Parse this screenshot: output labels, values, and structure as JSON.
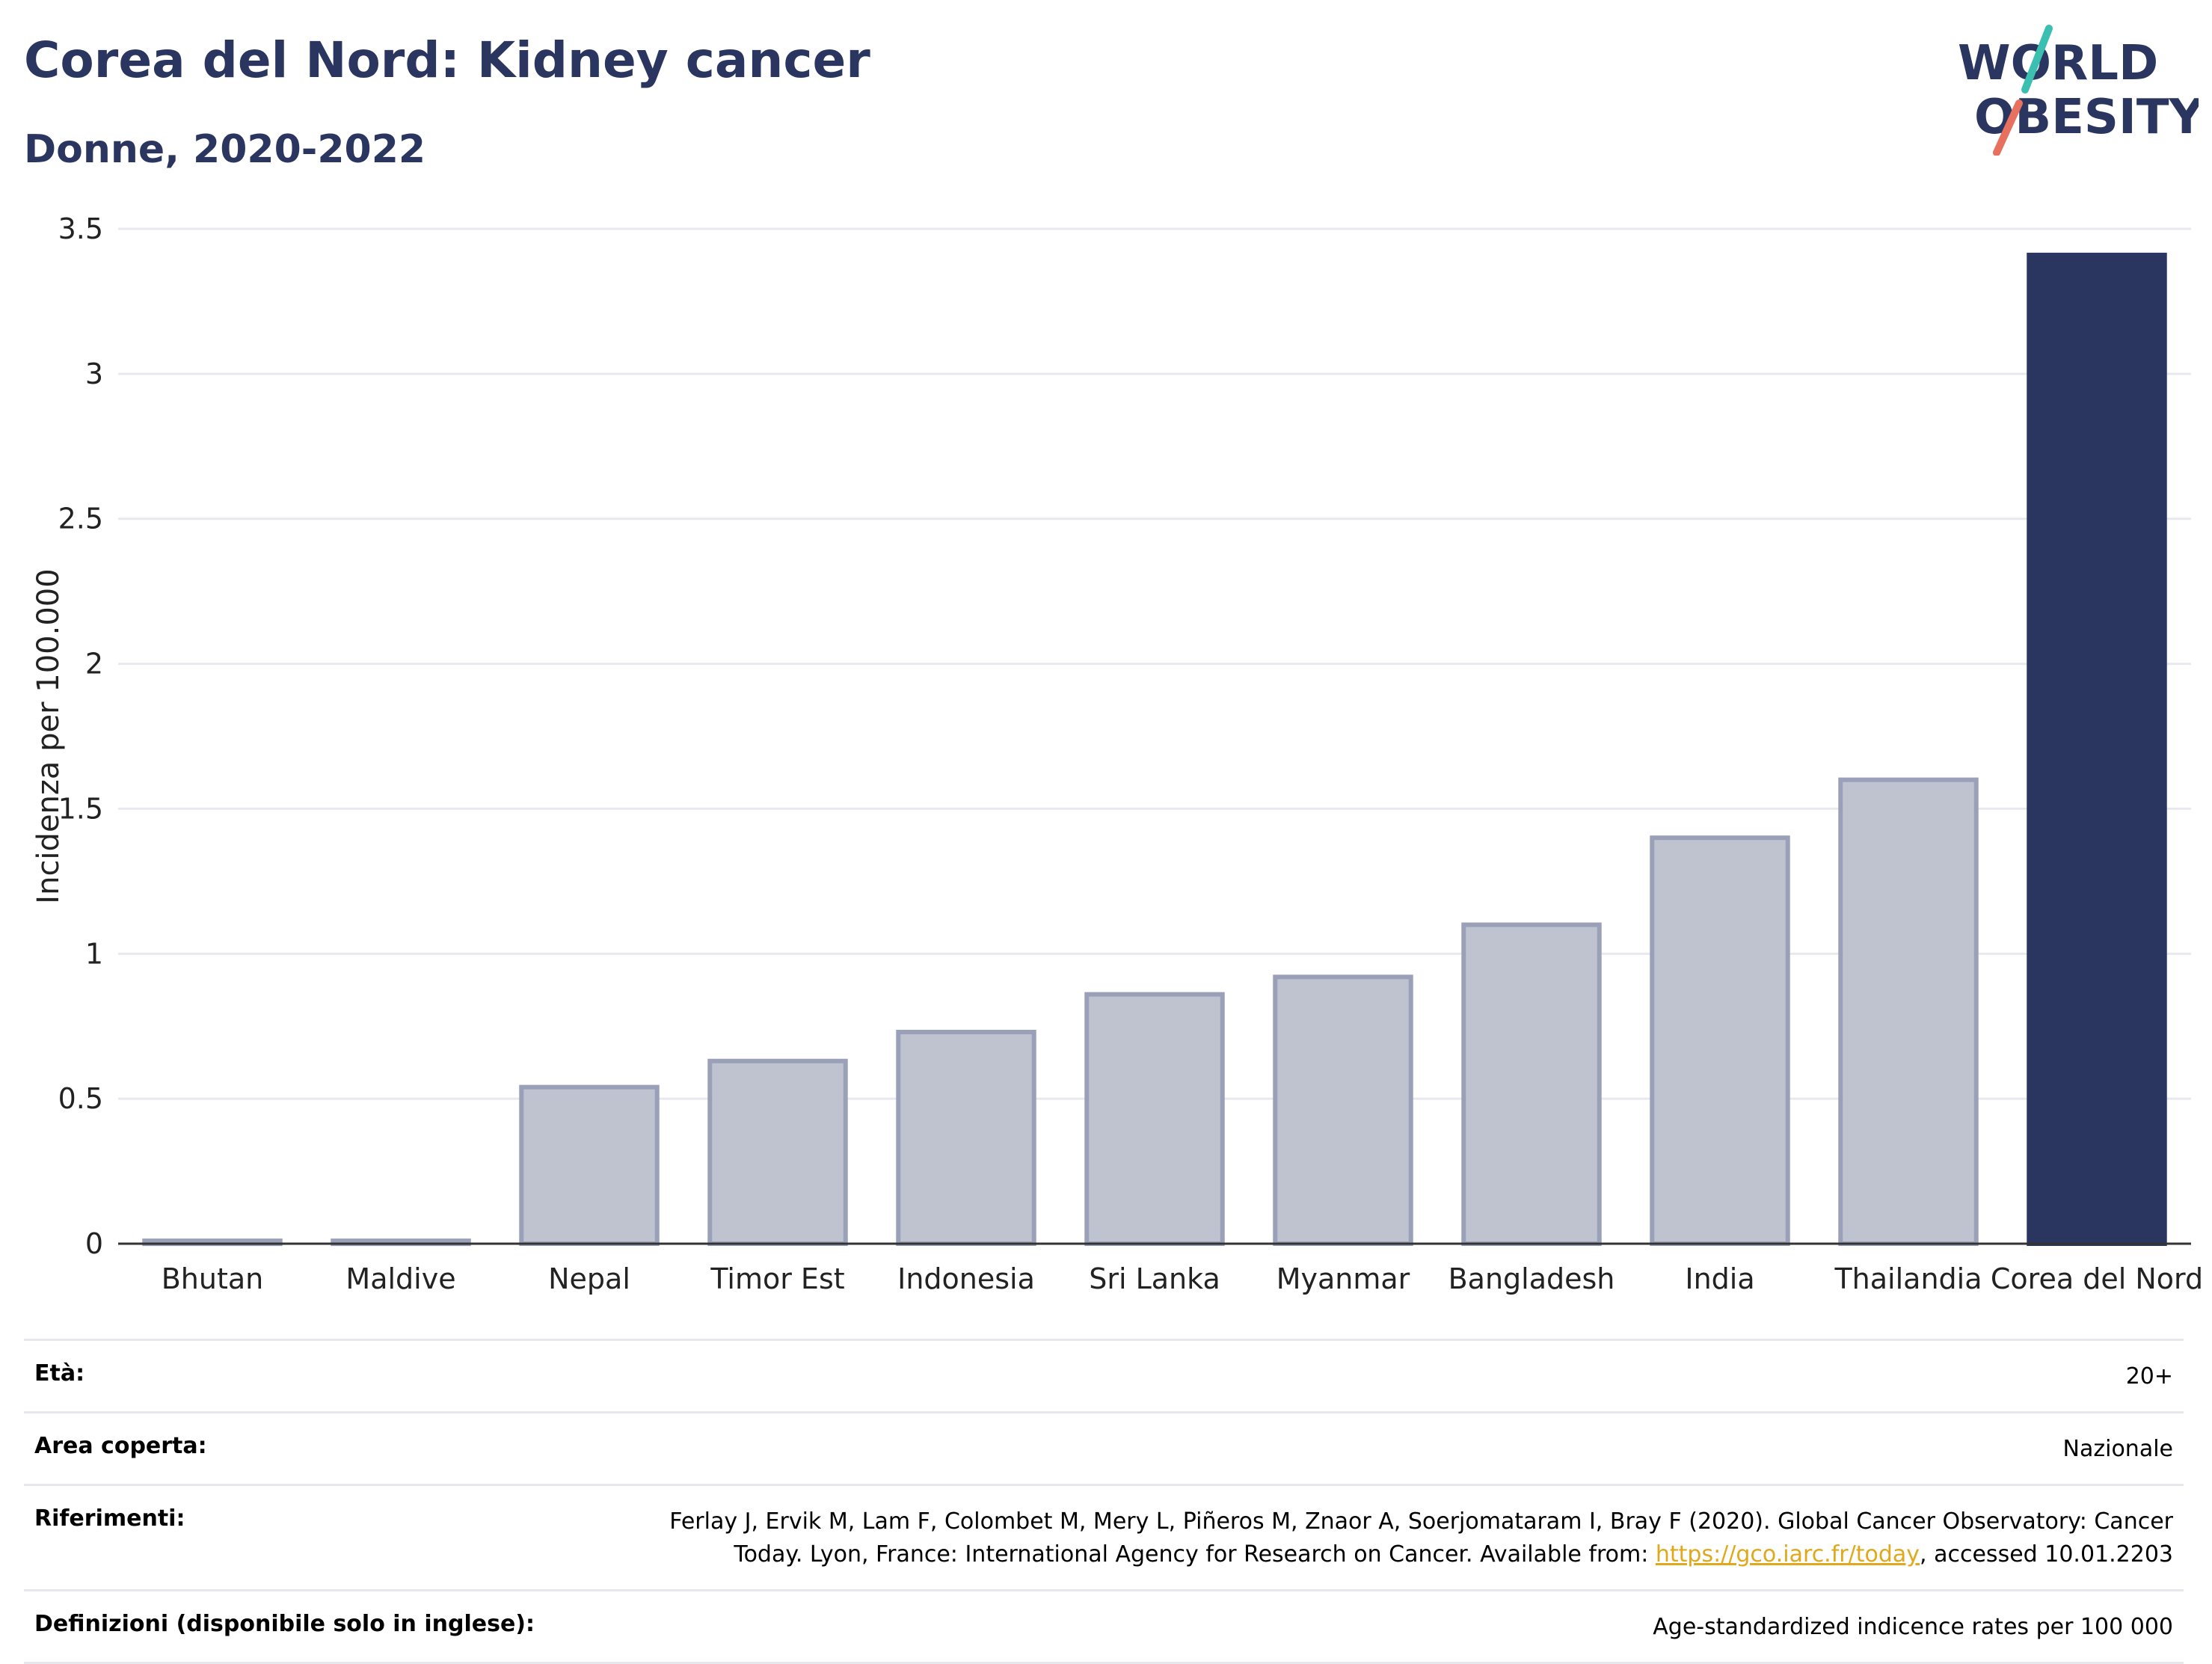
{
  "header": {
    "title": "Corea del Nord: Kidney cancer",
    "subtitle": "Donne, 2020-2022"
  },
  "logo": {
    "line1": "WORLD",
    "line2": "OBESITY"
  },
  "colors": {
    "highlight": "#2a3560",
    "other": "#bfc3d0",
    "other_border": "#9aa0b8",
    "text": "#2a3560",
    "link": "#e0a91c"
  },
  "chart_data": {
    "type": "bar",
    "categories": [
      "Bhutan",
      "Maldive",
      "Nepal",
      "Timor Est",
      "Indonesia",
      "Sri Lanka",
      "Myanmar",
      "Bangladesh",
      "India",
      "Thailandia",
      "Corea del Nord"
    ],
    "values": [
      0.01,
      0.01,
      0.54,
      0.63,
      0.73,
      0.86,
      0.92,
      1.1,
      1.4,
      1.6,
      3.41
    ],
    "highlight": "Corea del Nord",
    "ylabel": "Incidenza per 100.000",
    "ylim": [
      0,
      3.5
    ],
    "yticks": [
      0,
      0.5,
      1,
      1.5,
      2,
      2.5,
      3,
      3.5
    ],
    "ytick_labels": [
      "0",
      "0.5",
      "1",
      "1.5",
      "2",
      "2.5",
      "3",
      "3.5"
    ],
    "grid": true
  },
  "info": [
    {
      "label": "Età:",
      "value": "20+"
    },
    {
      "label": "Area coperta:",
      "value": "Nazionale"
    },
    {
      "label": "Riferimenti:",
      "value_prefix": "Ferlay J, Ervik M, Lam F, Colombet M, Mery L, Piñeros M, Znaor A, Soerjomataram I, Bray F (2020). Global Cancer Observatory: Cancer Today. Lyon, France: International Agency for Research on Cancer. Available from: ",
      "link": "https://gco.iarc.fr/today",
      "value_suffix": ", accessed 10.01.2203"
    },
    {
      "label": "Definizioni (disponibile solo in inglese):",
      "value": "Age-standardized indicence rates per 100 000"
    }
  ]
}
